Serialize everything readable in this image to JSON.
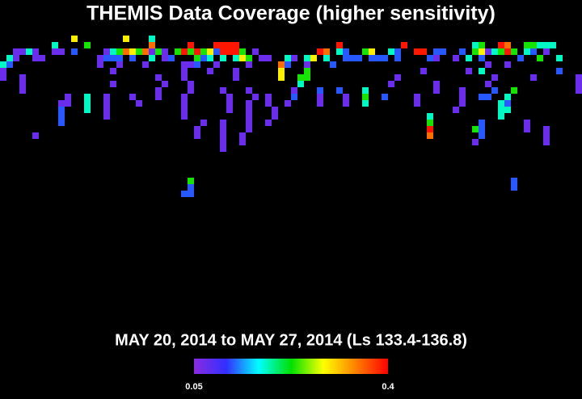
{
  "chart_data": {
    "type": "heatmap",
    "title": "THEMIS Data Coverage (higher sensitivity)",
    "subtitle": "MAY 20, 2014 to MAY 27, 2014 (Ls 133.4-136.8)",
    "colormap": [
      "#8a2be2",
      "#3030ff",
      "#00ffff",
      "#00e000",
      "#ffff00",
      "#ff8000",
      "#ff0000"
    ],
    "clim": [
      0.05,
      0.4
    ],
    "cticks": [
      0.05,
      0.4
    ],
    "cells": [
      [
        11,
        0,
        0.29
      ],
      [
        19,
        0,
        0.29
      ],
      [
        23,
        0,
        0.18
      ],
      [
        8,
        1,
        0.18
      ],
      [
        13,
        1,
        0.23
      ],
      [
        23,
        1,
        0.35
      ],
      [
        29,
        1,
        0.39
      ],
      [
        33,
        1,
        0.39
      ],
      [
        34,
        1,
        0.39
      ],
      [
        35,
        1,
        0.39
      ],
      [
        36,
        1,
        0.39
      ],
      [
        52,
        1,
        0.39
      ],
      [
        62,
        1,
        0.39
      ],
      [
        73,
        1,
        0.18
      ],
      [
        74,
        1,
        0.23
      ],
      [
        77,
        1,
        0.39
      ],
      [
        78,
        1,
        0.35
      ],
      [
        81,
        1,
        0.23
      ],
      [
        82,
        1,
        0.23
      ],
      [
        83,
        1,
        0.18
      ],
      [
        84,
        1,
        0.18
      ],
      [
        85,
        1,
        0.18
      ],
      [
        2,
        2,
        0.07
      ],
      [
        3,
        2,
        0.07
      ],
      [
        4,
        2,
        0.18
      ],
      [
        5,
        2,
        0.07
      ],
      [
        8,
        2,
        0.07
      ],
      [
        9,
        2,
        0.07
      ],
      [
        11,
        2,
        0.12
      ],
      [
        16,
        2,
        0.07
      ],
      [
        17,
        2,
        0.18
      ],
      [
        18,
        2,
        0.23
      ],
      [
        19,
        2,
        0.35
      ],
      [
        20,
        2,
        0.29
      ],
      [
        21,
        2,
        0.23
      ],
      [
        22,
        2,
        0.35
      ],
      [
        23,
        2,
        0.07
      ],
      [
        24,
        2,
        0.23
      ],
      [
        25,
        2,
        0.07
      ],
      [
        27,
        2,
        0.23
      ],
      [
        28,
        2,
        0.39
      ],
      [
        29,
        2,
        0.23
      ],
      [
        30,
        2,
        0.39
      ],
      [
        31,
        2,
        0.23
      ],
      [
        32,
        2,
        0.29
      ],
      [
        33,
        2,
        0.12
      ],
      [
        34,
        2,
        0.39
      ],
      [
        35,
        2,
        0.39
      ],
      [
        36,
        2,
        0.39
      ],
      [
        37,
        2,
        0.23
      ],
      [
        39,
        2,
        0.07
      ],
      [
        49,
        2,
        0.39
      ],
      [
        50,
        2,
        0.35
      ],
      [
        52,
        2,
        0.18
      ],
      [
        53,
        2,
        0.12
      ],
      [
        56,
        2,
        0.23
      ],
      [
        57,
        2,
        0.29
      ],
      [
        60,
        2,
        0.18
      ],
      [
        61,
        2,
        0.12
      ],
      [
        64,
        2,
        0.39
      ],
      [
        65,
        2,
        0.39
      ],
      [
        67,
        2,
        0.12
      ],
      [
        68,
        2,
        0.12
      ],
      [
        71,
        2,
        0.12
      ],
      [
        73,
        2,
        0.23
      ],
      [
        74,
        2,
        0.29
      ],
      [
        75,
        2,
        0.07
      ],
      [
        76,
        2,
        0.18
      ],
      [
        77,
        2,
        0.23
      ],
      [
        78,
        2,
        0.39
      ],
      [
        79,
        2,
        0.23
      ],
      [
        81,
        2,
        0.18
      ],
      [
        82,
        2,
        0.12
      ],
      [
        84,
        2,
        0.07
      ],
      [
        1,
        3,
        0.18
      ],
      [
        2,
        3,
        0.07
      ],
      [
        5,
        3,
        0.07
      ],
      [
        6,
        3,
        0.07
      ],
      [
        15,
        3,
        0.07
      ],
      [
        16,
        3,
        0.12
      ],
      [
        17,
        3,
        0.12
      ],
      [
        18,
        3,
        0.12
      ],
      [
        20,
        3,
        0.12
      ],
      [
        23,
        3,
        0.18
      ],
      [
        25,
        3,
        0.07
      ],
      [
        26,
        3,
        0.12
      ],
      [
        30,
        3,
        0.23
      ],
      [
        31,
        3,
        0.12
      ],
      [
        32,
        3,
        0.18
      ],
      [
        34,
        3,
        0.18
      ],
      [
        36,
        3,
        0.18
      ],
      [
        37,
        3,
        0.29
      ],
      [
        38,
        3,
        0.23
      ],
      [
        40,
        3,
        0.07
      ],
      [
        41,
        3,
        0.07
      ],
      [
        44,
        3,
        0.18
      ],
      [
        45,
        3,
        0.07
      ],
      [
        47,
        3,
        0.18
      ],
      [
        48,
        3,
        0.29
      ],
      [
        50,
        3,
        0.18
      ],
      [
        53,
        3,
        0.12
      ],
      [
        54,
        3,
        0.12
      ],
      [
        55,
        3,
        0.12
      ],
      [
        57,
        3,
        0.12
      ],
      [
        58,
        3,
        0.12
      ],
      [
        59,
        3,
        0.12
      ],
      [
        61,
        3,
        0.12
      ],
      [
        66,
        3,
        0.12
      ],
      [
        67,
        3,
        0.07
      ],
      [
        70,
        3,
        0.07
      ],
      [
        72,
        3,
        0.18
      ],
      [
        74,
        3,
        0.12
      ],
      [
        80,
        3,
        0.12
      ],
      [
        83,
        3,
        0.23
      ],
      [
        86,
        3,
        0.18
      ],
      [
        0,
        4,
        0.18
      ],
      [
        1,
        4,
        0.12
      ],
      [
        15,
        4,
        0.07
      ],
      [
        18,
        4,
        0.07
      ],
      [
        22,
        4,
        0.07
      ],
      [
        28,
        4,
        0.07
      ],
      [
        29,
        4,
        0.07
      ],
      [
        30,
        4,
        0.12
      ],
      [
        33,
        4,
        0.07
      ],
      [
        38,
        4,
        0.07
      ],
      [
        43,
        4,
        0.35
      ],
      [
        44,
        4,
        0.12
      ],
      [
        47,
        4,
        0.07
      ],
      [
        51,
        4,
        0.12
      ],
      [
        75,
        4,
        0.07
      ],
      [
        78,
        4,
        0.07
      ],
      [
        0,
        5,
        0.07
      ],
      [
        17,
        5,
        0.07
      ],
      [
        28,
        5,
        0.07
      ],
      [
        32,
        5,
        0.07
      ],
      [
        36,
        5,
        0.07
      ],
      [
        43,
        5,
        0.29
      ],
      [
        47,
        5,
        0.23
      ],
      [
        65,
        5,
        0.07
      ],
      [
        72,
        5,
        0.07
      ],
      [
        74,
        5,
        0.18
      ],
      [
        86,
        5,
        0.12
      ],
      [
        0,
        6,
        0.07
      ],
      [
        3,
        6,
        0.07
      ],
      [
        24,
        6,
        0.07
      ],
      [
        28,
        6,
        0.07
      ],
      [
        36,
        6,
        0.07
      ],
      [
        43,
        6,
        0.29
      ],
      [
        46,
        6,
        0.23
      ],
      [
        47,
        6,
        0.23
      ],
      [
        61,
        6,
        0.07
      ],
      [
        76,
        6,
        0.07
      ],
      [
        82,
        6,
        0.07
      ],
      [
        89,
        6,
        0.07
      ],
      [
        3,
        7,
        0.07
      ],
      [
        17,
        7,
        0.07
      ],
      [
        25,
        7,
        0.07
      ],
      [
        29,
        7,
        0.07
      ],
      [
        46,
        7,
        0.18
      ],
      [
        60,
        7,
        0.07
      ],
      [
        67,
        7,
        0.07
      ],
      [
        75,
        7,
        0.07
      ],
      [
        89,
        7,
        0.07
      ],
      [
        3,
        8,
        0.07
      ],
      [
        24,
        8,
        0.07
      ],
      [
        29,
        8,
        0.07
      ],
      [
        34,
        8,
        0.07
      ],
      [
        38,
        8,
        0.07
      ],
      [
        45,
        8,
        0.07
      ],
      [
        49,
        8,
        0.12
      ],
      [
        52,
        8,
        0.12
      ],
      [
        56,
        8,
        0.18
      ],
      [
        67,
        8,
        0.07
      ],
      [
        71,
        8,
        0.07
      ],
      [
        76,
        8,
        0.12
      ],
      [
        79,
        8,
        0.23
      ],
      [
        89,
        8,
        0.07
      ],
      [
        10,
        9,
        0.07
      ],
      [
        13,
        9,
        0.18
      ],
      [
        16,
        9,
        0.07
      ],
      [
        20,
        9,
        0.07
      ],
      [
        24,
        9,
        0.07
      ],
      [
        28,
        9,
        0.07
      ],
      [
        35,
        9,
        0.07
      ],
      [
        39,
        9,
        0.07
      ],
      [
        41,
        9,
        0.07
      ],
      [
        45,
        9,
        0.12
      ],
      [
        49,
        9,
        0.07
      ],
      [
        53,
        9,
        0.07
      ],
      [
        56,
        9,
        0.23
      ],
      [
        59,
        9,
        0.12
      ],
      [
        64,
        9,
        0.07
      ],
      [
        71,
        9,
        0.07
      ],
      [
        74,
        9,
        0.12
      ],
      [
        75,
        9,
        0.12
      ],
      [
        78,
        9,
        0.18
      ],
      [
        9,
        10,
        0.07
      ],
      [
        10,
        10,
        0.07
      ],
      [
        13,
        10,
        0.18
      ],
      [
        16,
        10,
        0.07
      ],
      [
        21,
        10,
        0.07
      ],
      [
        28,
        10,
        0.07
      ],
      [
        35,
        10,
        0.07
      ],
      [
        38,
        10,
        0.07
      ],
      [
        41,
        10,
        0.07
      ],
      [
        44,
        10,
        0.07
      ],
      [
        49,
        10,
        0.07
      ],
      [
        53,
        10,
        0.07
      ],
      [
        56,
        10,
        0.18
      ],
      [
        64,
        10,
        0.07
      ],
      [
        71,
        10,
        0.07
      ],
      [
        77,
        10,
        0.18
      ],
      [
        78,
        10,
        0.12
      ],
      [
        9,
        11,
        0.12
      ],
      [
        13,
        11,
        0.18
      ],
      [
        16,
        11,
        0.07
      ],
      [
        28,
        11,
        0.07
      ],
      [
        35,
        11,
        0.07
      ],
      [
        38,
        11,
        0.07
      ],
      [
        42,
        11,
        0.07
      ],
      [
        70,
        11,
        0.07
      ],
      [
        77,
        11,
        0.18
      ],
      [
        78,
        11,
        0.18
      ],
      [
        9,
        12,
        0.12
      ],
      [
        16,
        12,
        0.07
      ],
      [
        28,
        12,
        0.07
      ],
      [
        38,
        12,
        0.07
      ],
      [
        42,
        12,
        0.07
      ],
      [
        66,
        12,
        0.18
      ],
      [
        77,
        12,
        0.18
      ],
      [
        9,
        13,
        0.12
      ],
      [
        31,
        13,
        0.07
      ],
      [
        34,
        13,
        0.07
      ],
      [
        38,
        13,
        0.07
      ],
      [
        41,
        13,
        0.07
      ],
      [
        66,
        13,
        0.23
      ],
      [
        74,
        13,
        0.12
      ],
      [
        81,
        13,
        0.07
      ],
      [
        30,
        14,
        0.07
      ],
      [
        34,
        14,
        0.07
      ],
      [
        38,
        14,
        0.07
      ],
      [
        66,
        14,
        0.39
      ],
      [
        73,
        14,
        0.23
      ],
      [
        74,
        14,
        0.12
      ],
      [
        81,
        14,
        0.07
      ],
      [
        84,
        14,
        0.07
      ],
      [
        5,
        15,
        0.07
      ],
      [
        30,
        15,
        0.07
      ],
      [
        34,
        15,
        0.07
      ],
      [
        37,
        15,
        0.07
      ],
      [
        66,
        15,
        0.35
      ],
      [
        74,
        15,
        0.12
      ],
      [
        84,
        15,
        0.07
      ],
      [
        34,
        16,
        0.07
      ],
      [
        37,
        16,
        0.07
      ],
      [
        73,
        16,
        0.07
      ],
      [
        84,
        16,
        0.07
      ],
      [
        34,
        17,
        0.07
      ],
      [
        29,
        22,
        0.23
      ],
      [
        79,
        22,
        0.12
      ],
      [
        29,
        23,
        0.12
      ],
      [
        79,
        23,
        0.12
      ],
      [
        28,
        24,
        0.12
      ],
      [
        29,
        24,
        0.12
      ]
    ]
  }
}
